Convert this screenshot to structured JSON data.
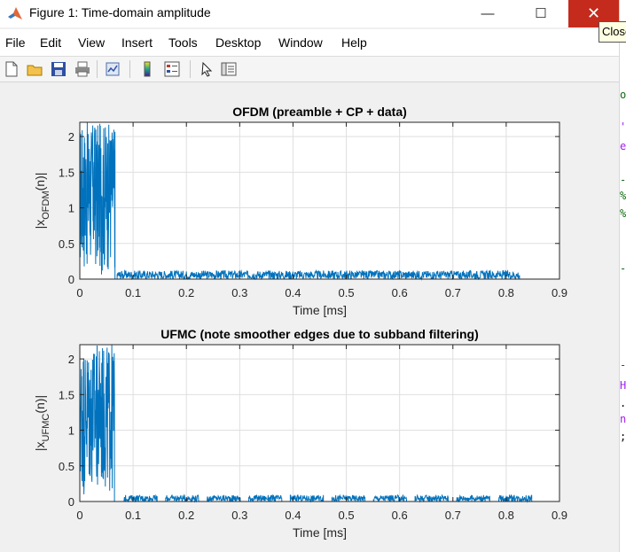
{
  "window": {
    "title": "Figure 1: Time-domain amplitude",
    "minimize_glyph": "—",
    "maximize_glyph": "☐",
    "close_glyph": "✕",
    "tooltip": "Close"
  },
  "menu": [
    "File",
    "Edit",
    "View",
    "Insert",
    "Tools",
    "Desktop",
    "Window",
    "Help"
  ],
  "toolbar_icons": [
    "new-figure-icon",
    "open-file-icon",
    "save-icon",
    "print-icon",
    "link-plot-icon",
    "colorbar-icon",
    "legend-icon",
    "pointer-icon",
    "property-inspector-icon"
  ],
  "editor_strip": [
    {
      "char": "o",
      "color": "#0e6b0e"
    },
    {
      "char": "'",
      "color": "#a020f0"
    },
    {
      "char": "e",
      "color": "#a020f0"
    },
    {
      "char": "-",
      "color": "#0e6b0e"
    },
    {
      "char": "%",
      "color": "#0e6b0e"
    },
    {
      "char": "%",
      "color": "#0e6b0e"
    },
    {
      "char": "-",
      "color": "#0e6b0e"
    },
    {
      "char": "-",
      "color": "#0e6b0e"
    },
    {
      "char": "H",
      "color": "#a020f0"
    },
    {
      "char": ".",
      "color": "#000000"
    },
    {
      "char": "n",
      "color": "#a020f0"
    },
    {
      "char": ";",
      "color": "#000000"
    }
  ],
  "colors": {
    "line": "#0072bd",
    "grid": "#dfdfdf",
    "axes_bg": "#ffffff",
    "figure_bg": "#f0f0f0"
  },
  "chart_data": [
    {
      "type": "line",
      "title": "OFDM (preamble + CP + data)",
      "xlabel": "Time [ms]",
      "ylabel_main": "|x",
      "ylabel_sub": "OFDM",
      "ylabel_tail": "(n)|",
      "xlim": [
        0,
        0.9
      ],
      "ylim": [
        0,
        2.2
      ],
      "xticks": [
        0,
        0.1,
        0.2,
        0.3,
        0.4,
        0.5,
        0.6,
        0.7,
        0.8,
        0.9
      ],
      "xtick_labels": [
        "0",
        "0.1",
        "0.2",
        "0.3",
        "0.4",
        "0.5",
        "0.6",
        "0.7",
        "0.8",
        "0.9"
      ],
      "yticks": [
        0,
        0.5,
        1,
        1.5,
        2
      ],
      "ytick_labels": [
        "0",
        "0.5",
        "1",
        "1.5",
        "2"
      ],
      "grid": true,
      "segments": [
        {
          "name": "preamble",
          "x_start": 0,
          "x_end": 0.066,
          "level_min": 0.05,
          "level_max": 2.2
        },
        {
          "name": "data",
          "x_start": 0.07,
          "x_end": 0.825,
          "level_min": 0.0,
          "level_max": 0.12,
          "bursts": [
            [
              0.07,
              0.825
            ]
          ]
        }
      ]
    },
    {
      "type": "line",
      "title": "UFMC (note smoother edges due to subband filtering)",
      "xlabel": "Time [ms]",
      "ylabel_main": "|x",
      "ylabel_sub": "UFMC",
      "ylabel_tail": "(n)|",
      "xlim": [
        0,
        0.9
      ],
      "ylim": [
        0,
        2.2
      ],
      "xticks": [
        0,
        0.1,
        0.2,
        0.3,
        0.4,
        0.5,
        0.6,
        0.7,
        0.8,
        0.9
      ],
      "xtick_labels": [
        "0",
        "0.1",
        "0.2",
        "0.3",
        "0.4",
        "0.5",
        "0.6",
        "0.7",
        "0.8",
        "0.9"
      ],
      "yticks": [
        0,
        0.5,
        1,
        1.5,
        2
      ],
      "ytick_labels": [
        "0",
        "0.5",
        "1",
        "1.5",
        "2"
      ],
      "grid": true,
      "segments": [
        {
          "name": "preamble",
          "x_start": 0,
          "x_end": 0.065,
          "level_min": 0.05,
          "level_max": 2.2
        },
        {
          "name": "data",
          "x_start": 0.083,
          "x_end": 0.848,
          "level_min": 0.0,
          "level_max": 0.09,
          "bursts": [
            [
              0.083,
              0.145
            ],
            [
              0.161,
              0.223
            ],
            [
              0.239,
              0.301
            ],
            [
              0.317,
              0.379
            ],
            [
              0.395,
              0.457
            ],
            [
              0.473,
              0.535
            ],
            [
              0.551,
              0.613
            ],
            [
              0.629,
              0.691
            ],
            [
              0.707,
              0.769
            ],
            [
              0.786,
              0.848
            ]
          ]
        }
      ]
    }
  ]
}
